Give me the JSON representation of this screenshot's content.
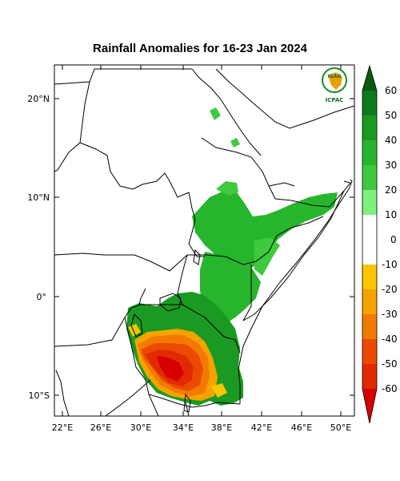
{
  "title": "Rainfall Anomalies for 16-23 Jan 2024",
  "logo": {
    "org_top": "IGAD",
    "org_bottom": "ICPAC",
    "icon": "igad-africa-logo"
  },
  "axes": {
    "lat_labels": [
      "20°N",
      "10°N",
      "0°",
      "10°S"
    ],
    "lon_labels": [
      "22°E",
      "26°E",
      "30°E",
      "34°E",
      "38°E",
      "42°E",
      "46°E",
      "50°E"
    ]
  },
  "colorbar": {
    "labels": [
      "60",
      "50",
      "40",
      "30",
      "20",
      "10",
      "0",
      "-10",
      "-20",
      "-30",
      "-40",
      "-50",
      "-60"
    ],
    "colors": {
      "over": "#0a5a12",
      "c50_60": "#0e7a1c",
      "c40_50": "#1a9a22",
      "c30_40": "#27b52e",
      "c20_30": "#3ec93e",
      "c10_20": "#7ff07f",
      "neutral": "#ffffff",
      "cm10_m20": "#f7c600",
      "cm20_m30": "#f6a300",
      "cm30_m40": "#f27a00",
      "cm40_m50": "#ec4a00",
      "cm50_m60": "#e22a00",
      "under": "#d60000"
    }
  }
}
